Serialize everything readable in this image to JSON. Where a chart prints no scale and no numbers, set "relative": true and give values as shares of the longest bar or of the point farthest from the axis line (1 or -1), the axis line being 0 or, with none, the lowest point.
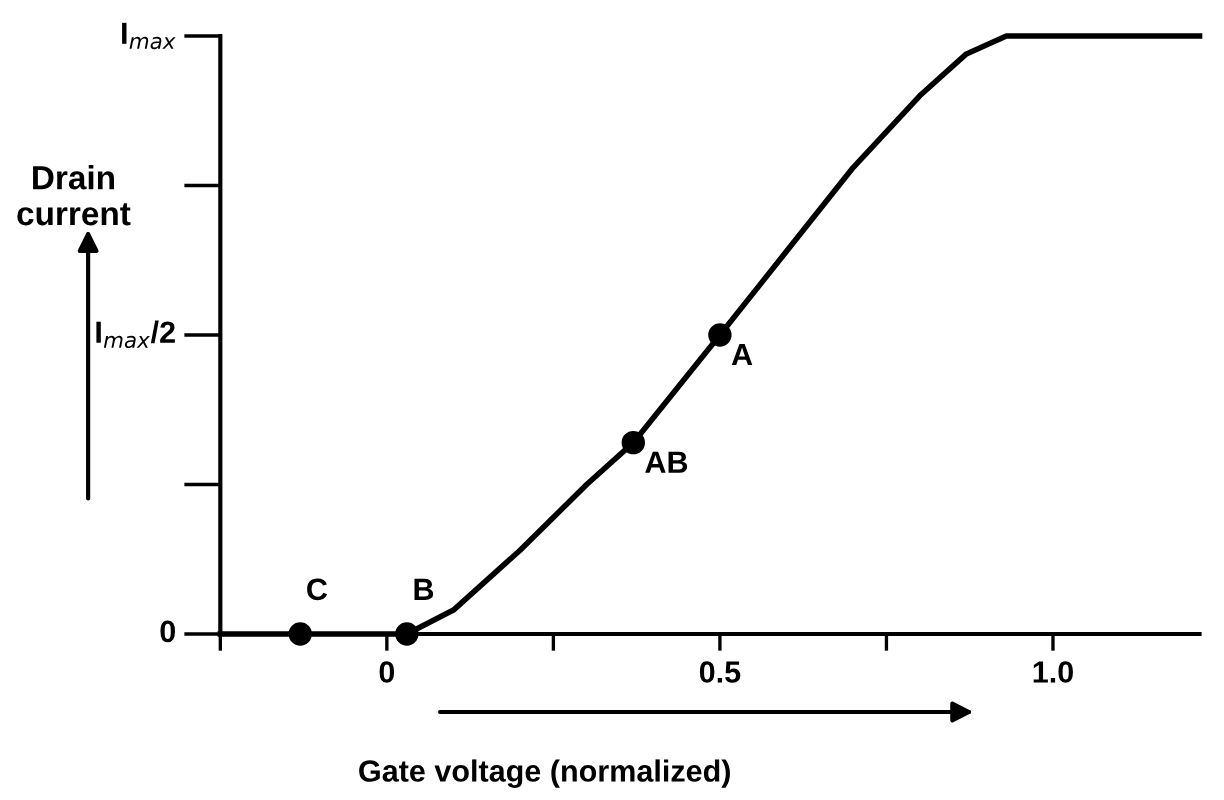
{
  "chart_data": {
    "type": "line",
    "xlabel": "Gate voltage (normalized)",
    "ylabel": "Drain current",
    "xlim": [
      -0.25,
      1.22
    ],
    "relative": true,
    "xticks": [
      {
        "value": -0.25,
        "label": null
      },
      {
        "value": 0,
        "label": "0"
      },
      {
        "value": 0.25,
        "label": null
      },
      0.5,
      {
        "value": 0.75,
        "label": null
      },
      {
        "value": 1.0,
        "label": "1.0"
      }
    ],
    "grid": false,
    "legend": false,
    "series": [
      {
        "color": "#000000",
        "x": [
          -0.25,
          0.03,
          0.1,
          0.2,
          0.3,
          0.37,
          0.5,
          0.6,
          0.7,
          0.8,
          0.87,
          0.93,
          1.22
        ],
        "values": [
          0,
          0,
          0.04,
          0.14,
          0.25,
          0.32,
          0.5,
          0.64,
          0.78,
          0.9,
          0.97,
          1.0,
          1.0
        ]
      },
      {
        "type": "scatter",
        "color": "#000000",
        "marker": "circle",
        "x": [
          0.5,
          0.37,
          0.03,
          -0.13
        ],
        "values": [
          0.5,
          0.32,
          0,
          0
        ]
      }
    ],
    "annotations": [
      "0",
      "I$_{max}$/2",
      "I$_{max}$",
      {
        "text": "A",
        "x": 0.5,
        "y": 0.5
      },
      {
        "text": "AB",
        "x": 0.37,
        "y": 0.32
      },
      {
        "text": "B",
        "x": 0.03,
        "y": 0
      },
      {
        "text": "C",
        "x": -0.13,
        "y": 0
      }
    ]
  }
}
